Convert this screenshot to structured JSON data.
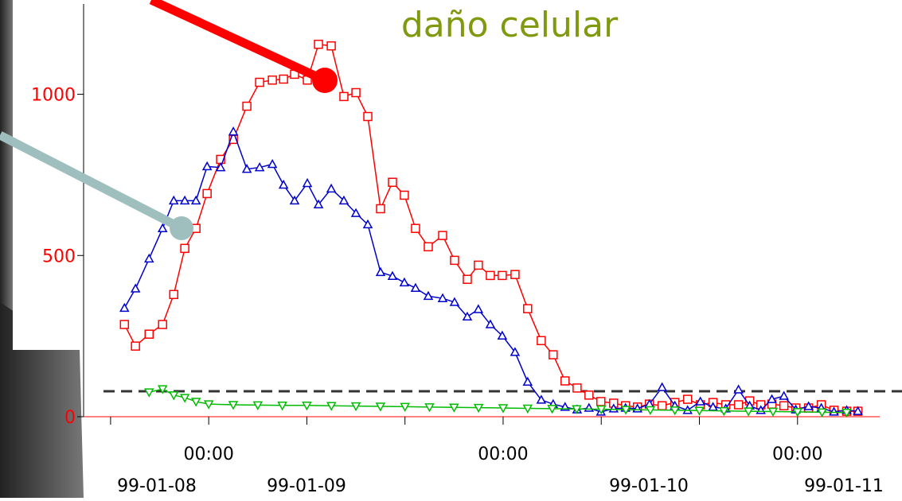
{
  "chart_data": {
    "type": "line",
    "title": "daño celular",
    "xlim": [
      -10.2,
      54.7
    ],
    "ylim": [
      0,
      1280
    ],
    "yticks": [
      0,
      500,
      1000
    ],
    "xticks": [
      {
        "value": 0,
        "label": "00:00"
      },
      {
        "value": 24,
        "label": "00:00"
      },
      {
        "value": 48,
        "label": "00:00"
      }
    ],
    "x_minor_ticks": [
      -8,
      8,
      16,
      32,
      40
    ],
    "x_date_labels": [
      "99-01-08",
      "99-01-09",
      "99-01-10",
      "99-01-11"
    ],
    "threshold": 79,
    "x": [
      -6.87,
      -5.97,
      -4.86,
      -3.76,
      -2.85,
      -1.95,
      -1.04,
      -0.13,
      0.97,
      2.01,
      3.11,
      4.15,
      5.19,
      6.1,
      7.0,
      8.04,
      8.95,
      9.99,
      11.02,
      12.0,
      12.97,
      14.01,
      14.98,
      15.95,
      16.86,
      17.9,
      19.07,
      20.04,
      21.08,
      21.98,
      22.96,
      23.93,
      24.97,
      26.0,
      27.11,
      28.08,
      29.05,
      30.03,
      31.0,
      31.97,
      33.01,
      33.98,
      34.95,
      35.93,
      36.96,
      38.0,
      39.04,
      40.08,
      41.11,
      42.15,
      43.19,
      44.1,
      45.01,
      45.91,
      46.89,
      47.86,
      48.9,
      49.94,
      50.97,
      52.01,
      52.92
    ],
    "series": [
      {
        "color": "#ff0000",
        "marker": "square",
        "values": [
          286,
          219,
          256,
          286,
          379,
          522,
          584,
          692,
          798,
          860,
          963,
          1037,
          1044,
          1047,
          1062,
          1044,
          1155,
          1150,
          993,
          1005,
          931,
          645,
          727,
          687,
          584,
          527,
          562,
          485,
          426,
          470,
          438,
          438,
          441,
          335,
          236,
          192,
          111,
          89,
          67,
          47,
          42,
          34,
          30,
          39,
          34,
          44,
          54,
          37,
          44,
          37,
          37,
          49,
          37,
          39,
          34,
          27,
          27,
          37,
          20,
          17,
          17
        ]
      },
      {
        "color": "#0000cc",
        "marker": "triangle-up",
        "values": [
          337,
          397,
          490,
          584,
          670,
          670,
          670,
          776,
          773,
          884,
          768,
          773,
          783,
          719,
          670,
          724,
          658,
          707,
          670,
          631,
          596,
          448,
          436,
          416,
          399,
          374,
          367,
          355,
          310,
          333,
          286,
          251,
          200,
          108,
          52,
          39,
          30,
          22,
          27,
          15,
          25,
          27,
          25,
          39,
          91,
          34,
          20,
          47,
          30,
          25,
          84,
          34,
          20,
          54,
          64,
          22,
          32,
          27,
          15,
          20,
          17
        ]
      },
      {
        "color": "#00bb00",
        "marker": "triangle-down",
        "x": [
          -4.86,
          -3.76,
          -2.85,
          -1.95,
          -1.04,
          0,
          2,
          4,
          6,
          8,
          10,
          12,
          14,
          16,
          18,
          20,
          22,
          24,
          26,
          28,
          30,
          32,
          34,
          36,
          38,
          40,
          42,
          44,
          46,
          48,
          50,
          52
        ],
        "values": [
          76,
          86,
          67,
          59,
          47,
          39,
          37,
          36,
          35,
          35,
          34,
          33,
          32,
          31,
          30,
          29,
          28,
          27,
          26,
          25,
          24,
          23,
          22,
          21,
          20,
          19,
          18,
          17,
          16,
          15,
          14,
          13
        ]
      }
    ]
  }
}
